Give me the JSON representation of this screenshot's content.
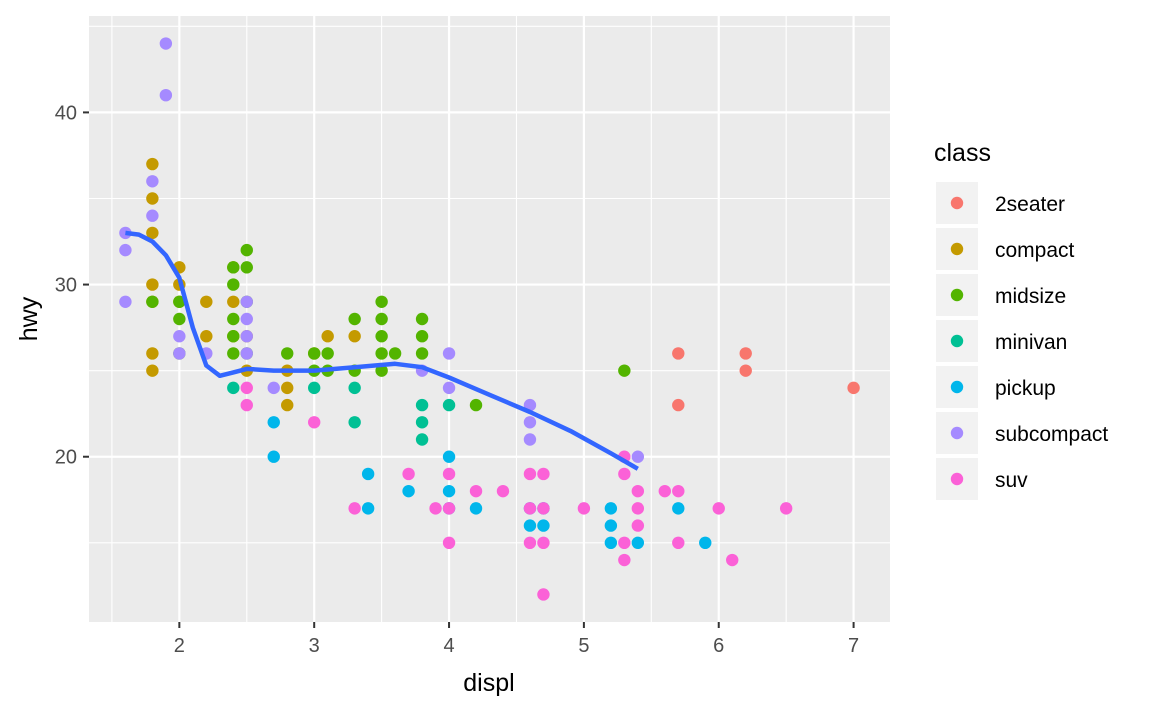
{
  "chart_data": {
    "type": "scatter",
    "xlabel": "displ",
    "ylabel": "hwy",
    "xlim": [
      1.33,
      7.27
    ],
    "ylim": [
      10.4,
      45.6
    ],
    "x_ticks": [
      2,
      3,
      4,
      5,
      6,
      7
    ],
    "x_tick_labels": [
      "2",
      "3",
      "4",
      "5",
      "6",
      "7"
    ],
    "x_minor_ticks": [
      1.5,
      2.5,
      3.5,
      4.5,
      5.5,
      6.5,
      7.0
    ],
    "y_ticks": [
      20,
      30,
      40
    ],
    "y_tick_labels": [
      "20",
      "30",
      "40"
    ],
    "y_minor_ticks": [
      15,
      25,
      35,
      45
    ],
    "grid": true,
    "legend": {
      "title": "class",
      "placement": "right",
      "entries": [
        "2seater",
        "compact",
        "midsize",
        "minivan",
        "pickup",
        "subcompact",
        "suv"
      ]
    },
    "colors": {
      "2seater": "#F8766D",
      "compact": "#C49A00",
      "midsize": "#53B400",
      "minivan": "#00C094",
      "pickup": "#00B6EB",
      "subcompact": "#A58AFF",
      "suv": "#FB61D7"
    },
    "series": [
      {
        "name": "2seater",
        "points": [
          [
            5.7,
            26
          ],
          [
            5.7,
            23
          ],
          [
            6.2,
            26
          ],
          [
            6.2,
            25
          ],
          [
            7.0,
            24
          ]
        ]
      },
      {
        "name": "compact",
        "points": [
          [
            1.8,
            37
          ],
          [
            1.8,
            35
          ],
          [
            1.8,
            33
          ],
          [
            1.8,
            30
          ],
          [
            1.8,
            29
          ],
          [
            1.8,
            26
          ],
          [
            1.8,
            25
          ],
          [
            2.0,
            31
          ],
          [
            2.0,
            30
          ],
          [
            2.0,
            29
          ],
          [
            2.2,
            29
          ],
          [
            2.2,
            27
          ],
          [
            2.4,
            31
          ],
          [
            2.4,
            29
          ],
          [
            2.4,
            27
          ],
          [
            2.5,
            27
          ],
          [
            2.5,
            25
          ],
          [
            2.8,
            25
          ],
          [
            2.8,
            24
          ],
          [
            2.8,
            23
          ],
          [
            3.0,
            26
          ],
          [
            3.1,
            27
          ],
          [
            3.3,
            27
          ]
        ]
      },
      {
        "name": "midsize",
        "points": [
          [
            1.8,
            29
          ],
          [
            2.0,
            29
          ],
          [
            2.0,
            28
          ],
          [
            2.0,
            26
          ],
          [
            2.4,
            31
          ],
          [
            2.4,
            30
          ],
          [
            2.4,
            28
          ],
          [
            2.4,
            27
          ],
          [
            2.4,
            26
          ],
          [
            2.5,
            32
          ],
          [
            2.5,
            31
          ],
          [
            2.5,
            29
          ],
          [
            2.5,
            26
          ],
          [
            2.8,
            26
          ],
          [
            3.0,
            25
          ],
          [
            3.0,
            26
          ],
          [
            3.1,
            26
          ],
          [
            3.1,
            25
          ],
          [
            3.3,
            28
          ],
          [
            3.3,
            25
          ],
          [
            3.5,
            29
          ],
          [
            3.5,
            28
          ],
          [
            3.5,
            27
          ],
          [
            3.5,
            26
          ],
          [
            3.5,
            25
          ],
          [
            3.6,
            26
          ],
          [
            3.8,
            28
          ],
          [
            3.8,
            27
          ],
          [
            3.8,
            26
          ],
          [
            4.2,
            23
          ],
          [
            5.3,
            25
          ]
        ]
      },
      {
        "name": "minivan",
        "points": [
          [
            2.4,
            24
          ],
          [
            3.0,
            24
          ],
          [
            3.3,
            24
          ],
          [
            3.3,
            22
          ],
          [
            3.8,
            23
          ],
          [
            3.8,
            22
          ],
          [
            3.8,
            21
          ],
          [
            4.0,
            23
          ]
        ]
      },
      {
        "name": "pickup",
        "points": [
          [
            2.7,
            22
          ],
          [
            2.7,
            20
          ],
          [
            3.4,
            19
          ],
          [
            3.4,
            17
          ],
          [
            3.7,
            18
          ],
          [
            4.0,
            20
          ],
          [
            4.0,
            18
          ],
          [
            4.0,
            17
          ],
          [
            4.2,
            17
          ],
          [
            4.6,
            17
          ],
          [
            4.6,
            16
          ],
          [
            4.7,
            17
          ],
          [
            4.7,
            16
          ],
          [
            5.2,
            17
          ],
          [
            5.2,
            16
          ],
          [
            5.2,
            15
          ],
          [
            5.4,
            15
          ],
          [
            5.7,
            17
          ],
          [
            5.9,
            15
          ]
        ]
      },
      {
        "name": "subcompact",
        "points": [
          [
            1.6,
            33
          ],
          [
            1.6,
            32
          ],
          [
            1.6,
            29
          ],
          [
            1.8,
            36
          ],
          [
            1.8,
            34
          ],
          [
            1.9,
            44
          ],
          [
            1.9,
            41
          ],
          [
            2.0,
            27
          ],
          [
            2.0,
            26
          ],
          [
            2.2,
            26
          ],
          [
            2.5,
            29
          ],
          [
            2.5,
            28
          ],
          [
            2.5,
            27
          ],
          [
            2.5,
            26
          ],
          [
            2.7,
            24
          ],
          [
            3.8,
            25
          ],
          [
            4.0,
            26
          ],
          [
            4.0,
            24
          ],
          [
            4.6,
            23
          ],
          [
            4.6,
            22
          ],
          [
            4.6,
            21
          ],
          [
            5.4,
            20
          ]
        ]
      },
      {
        "name": "suv",
        "points": [
          [
            2.5,
            24
          ],
          [
            2.5,
            23
          ],
          [
            3.0,
            22
          ],
          [
            3.3,
            17
          ],
          [
            3.7,
            19
          ],
          [
            3.9,
            17
          ],
          [
            4.0,
            19
          ],
          [
            4.0,
            17
          ],
          [
            4.0,
            15
          ],
          [
            4.2,
            18
          ],
          [
            4.4,
            18
          ],
          [
            4.6,
            19
          ],
          [
            4.6,
            17
          ],
          [
            4.6,
            15
          ],
          [
            4.7,
            19
          ],
          [
            4.7,
            17
          ],
          [
            4.7,
            15
          ],
          [
            4.7,
            12
          ],
          [
            5.0,
            17
          ],
          [
            5.3,
            20
          ],
          [
            5.3,
            19
          ],
          [
            5.3,
            15
          ],
          [
            5.3,
            14
          ],
          [
            5.4,
            18
          ],
          [
            5.4,
            17
          ],
          [
            5.4,
            16
          ],
          [
            5.6,
            18
          ],
          [
            5.7,
            18
          ],
          [
            5.7,
            15
          ],
          [
            6.0,
            17
          ],
          [
            6.1,
            14
          ],
          [
            6.5,
            17
          ]
        ]
      }
    ],
    "smooth": {
      "color": "#3366FF",
      "points": [
        [
          1.6,
          33
        ],
        [
          1.7,
          32.9
        ],
        [
          1.8,
          32.5
        ],
        [
          1.9,
          31.7
        ],
        [
          2.0,
          30.4
        ],
        [
          2.1,
          27.5
        ],
        [
          2.2,
          25.3
        ],
        [
          2.3,
          24.7
        ],
        [
          2.4,
          24.9
        ],
        [
          2.5,
          25.1
        ],
        [
          2.7,
          25
        ],
        [
          3.0,
          25
        ],
        [
          3.3,
          25.2
        ],
        [
          3.6,
          25.4
        ],
        [
          3.8,
          25.2
        ],
        [
          4.0,
          24.6
        ],
        [
          4.3,
          23.6
        ],
        [
          4.6,
          22.6
        ],
        [
          4.9,
          21.5
        ],
        [
          5.2,
          20.2
        ],
        [
          5.4,
          19.3
        ]
      ]
    }
  }
}
